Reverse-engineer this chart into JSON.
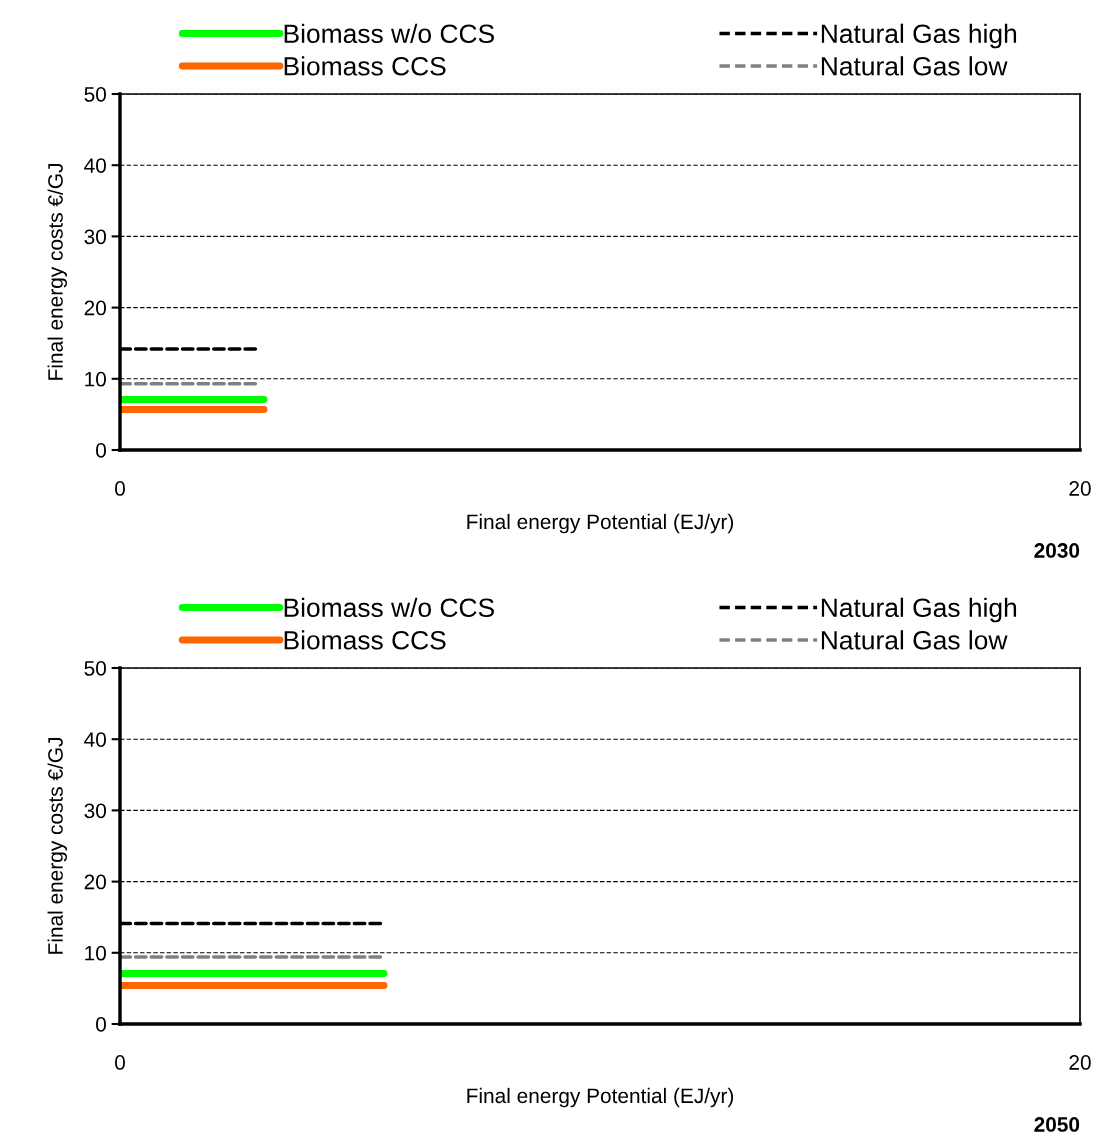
{
  "chart_data": [
    {
      "type": "line",
      "xlabel": "Final energy Potential (EJ/yr)",
      "ylabel": "Final energy costs €/GJ",
      "annotations": [
        "2030"
      ],
      "xlim": [
        0,
        20
      ],
      "xticks": [
        0,
        20
      ],
      "ylim": [
        0,
        50
      ],
      "yticks": [
        0,
        10,
        20,
        30,
        40,
        50
      ],
      "grid": "y",
      "legend": "top",
      "marker": "none",
      "series": [
        {
          "name": "Biomass w/o CCS",
          "color": "#00ff00",
          "line_style": "solid",
          "x": [
            0,
            3.0
          ],
          "values": [
            7.1,
            7.1
          ]
        },
        {
          "name": "Biomass CCS",
          "color": "#ff6600",
          "line_style": "solid",
          "x": [
            0,
            3.0
          ],
          "values": [
            5.7,
            5.7
          ]
        },
        {
          "name": "Natural Gas high",
          "color": "#000000",
          "line_style": "dashed",
          "x": [
            0,
            2.9
          ],
          "values": [
            14.2,
            14.2
          ]
        },
        {
          "name": "Natural Gas low",
          "color": "#808080",
          "line_style": "dashed",
          "x": [
            0,
            2.9
          ],
          "values": [
            9.3,
            9.3
          ]
        }
      ]
    },
    {
      "type": "line",
      "xlabel": "Final energy Potential (EJ/yr)",
      "ylabel": "Final energy costs €/GJ",
      "annotations": [
        "2050"
      ],
      "xlim": [
        0,
        20
      ],
      "xticks": [
        0,
        20
      ],
      "ylim": [
        0,
        50
      ],
      "yticks": [
        0,
        10,
        20,
        30,
        40,
        50
      ],
      "grid": "y",
      "legend": "top",
      "marker": "none",
      "series": [
        {
          "name": "Biomass w/o CCS",
          "color": "#00ff00",
          "line_style": "solid",
          "x": [
            0,
            5.5
          ],
          "values": [
            7.1,
            7.1
          ]
        },
        {
          "name": "Biomass CCS",
          "color": "#ff6600",
          "line_style": "solid",
          "x": [
            0,
            5.5
          ],
          "values": [
            5.4,
            5.4
          ]
        },
        {
          "name": "Natural Gas high",
          "color": "#000000",
          "line_style": "dashed",
          "x": [
            0,
            5.5
          ],
          "values": [
            14.1,
            14.1
          ]
        },
        {
          "name": "Natural Gas low",
          "color": "#808080",
          "line_style": "dashed",
          "x": [
            0,
            5.5
          ],
          "values": [
            9.4,
            9.4
          ]
        }
      ]
    }
  ]
}
